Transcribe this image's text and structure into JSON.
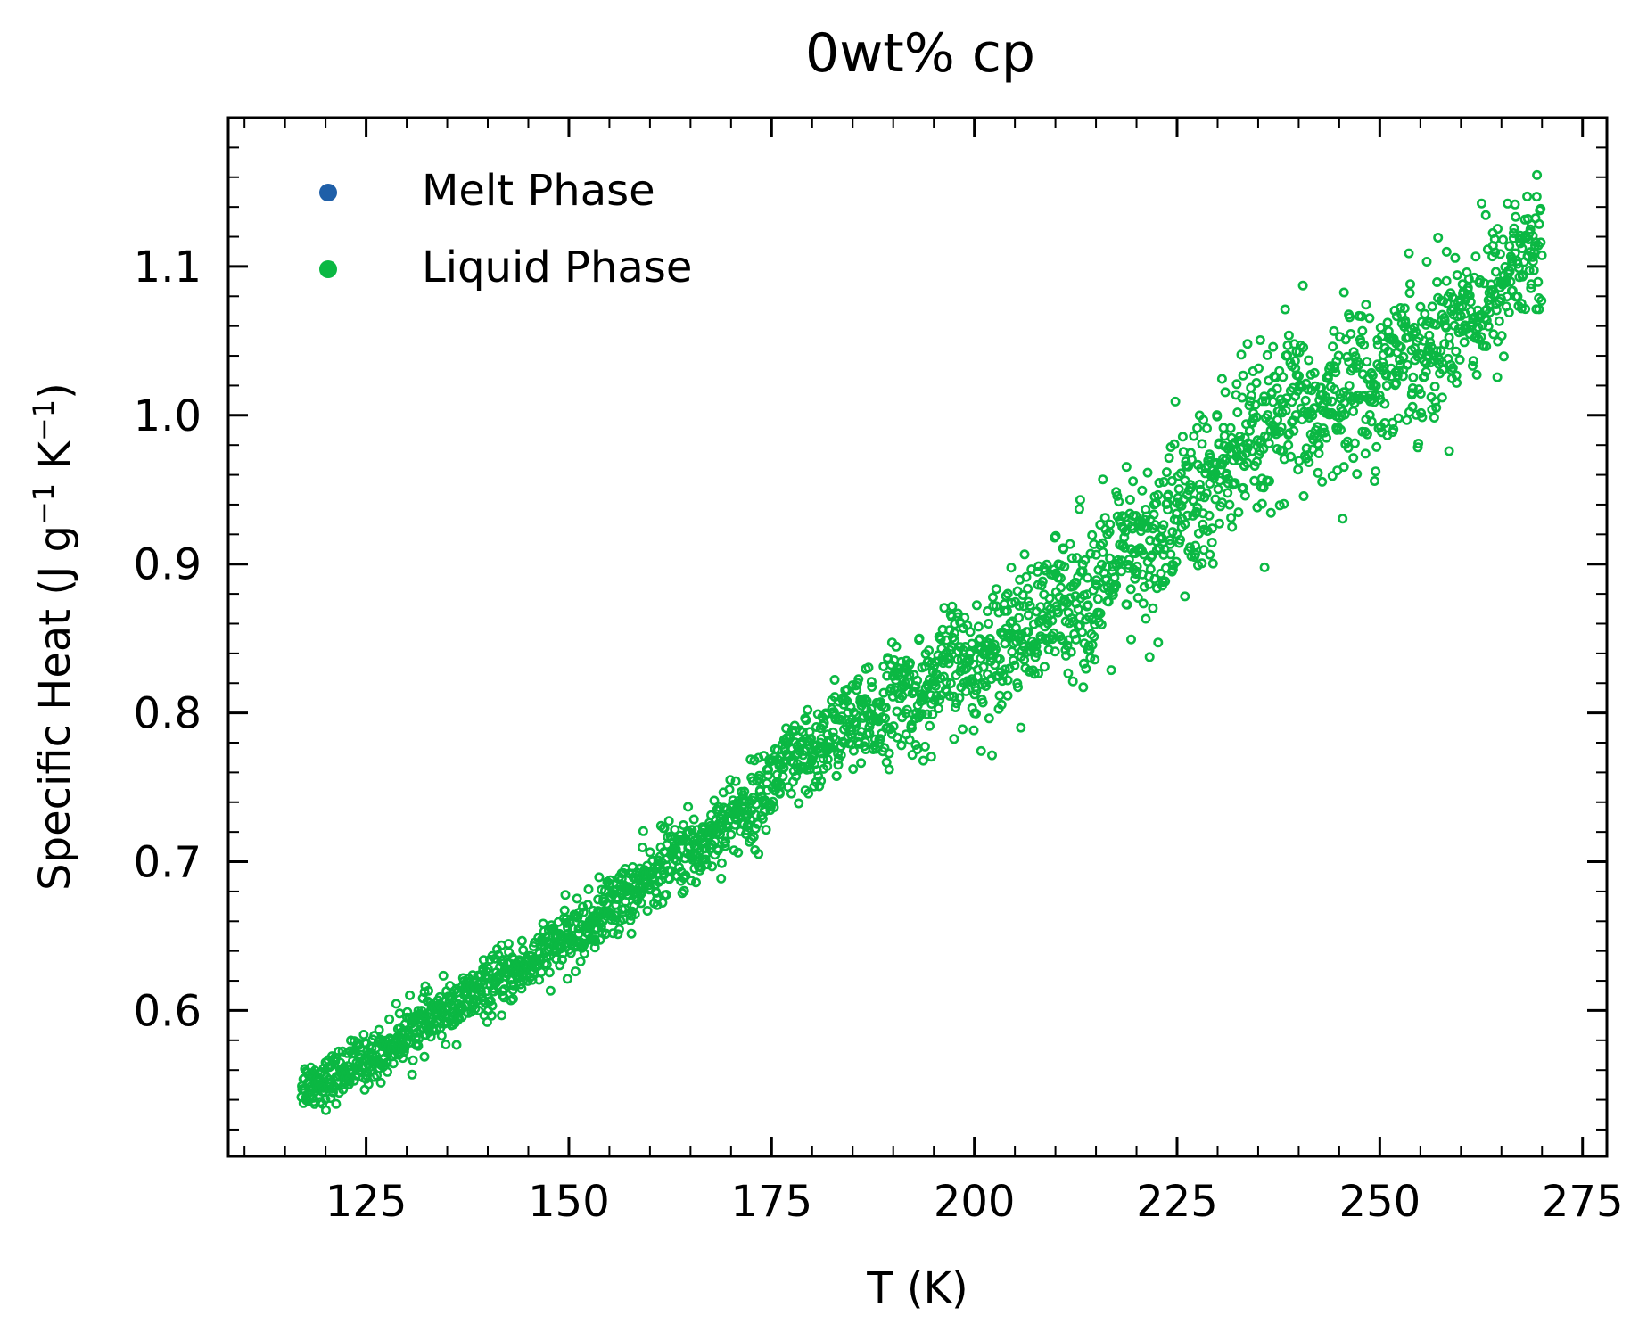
{
  "chart_data": {
    "type": "scatter",
    "title": "0wt% cp",
    "xlabel": "T (K)",
    "ylabel": {
      "text": "Specific Heat (J g",
      "sup1": "−1",
      "mid": " K",
      "sup2": "−1",
      "end": ")"
    },
    "xlim": [
      108,
      278
    ],
    "ylim": [
      0.502,
      1.2
    ],
    "xticks": [
      125,
      150,
      175,
      200,
      225,
      250,
      275
    ],
    "yticks": [
      0.6,
      0.7,
      0.8,
      0.9,
      1.0,
      1.1
    ],
    "ytick_labels": [
      "0.6",
      "0.7",
      "0.8",
      "0.9",
      "1.0",
      "1.1"
    ],
    "legend_position": "top-left",
    "grid": false,
    "series": [
      {
        "name": "Melt Phase",
        "color": "#1f5fa8",
        "marker": "filled-circle",
        "points": []
      },
      {
        "name": "Liquid Phase",
        "color": "#0bb843",
        "marker": "hollow-circle",
        "x_range": [
          117,
          270
        ],
        "trend": [
          [
            117,
            0.548
          ],
          [
            125,
            0.565
          ],
          [
            130,
            0.585
          ],
          [
            140,
            0.615
          ],
          [
            150,
            0.648
          ],
          [
            155,
            0.668
          ],
          [
            160,
            0.69
          ],
          [
            165,
            0.708
          ],
          [
            170,
            0.728
          ],
          [
            175,
            0.752
          ],
          [
            180,
            0.775
          ],
          [
            185,
            0.792
          ],
          [
            190,
            0.805
          ],
          [
            195,
            0.82
          ],
          [
            200,
            0.835
          ],
          [
            205,
            0.852
          ],
          [
            210,
            0.868
          ],
          [
            215,
            0.885
          ],
          [
            220,
            0.905
          ],
          [
            225,
            0.93
          ],
          [
            230,
            0.96
          ],
          [
            235,
            0.985
          ],
          [
            240,
            1.0
          ],
          [
            245,
            1.01
          ],
          [
            250,
            1.03
          ],
          [
            255,
            1.045
          ],
          [
            260,
            1.065
          ],
          [
            265,
            1.09
          ],
          [
            270,
            1.115
          ]
        ],
        "scatter_spread": [
          [
            117,
            0.008
          ],
          [
            150,
            0.01
          ],
          [
            175,
            0.014
          ],
          [
            200,
            0.02
          ],
          [
            225,
            0.03
          ],
          [
            250,
            0.025
          ],
          [
            270,
            0.025
          ]
        ]
      }
    ]
  }
}
